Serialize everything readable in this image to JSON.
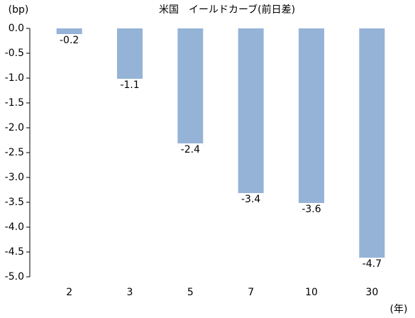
{
  "chart_data": {
    "type": "bar",
    "title": "米国　イールドカーブ(前日差)",
    "y_label": "(bp)",
    "x_label": "(年)",
    "categories": [
      "2",
      "3",
      "5",
      "7",
      "10",
      "30"
    ],
    "values": [
      -0.2,
      -1.1,
      -2.4,
      -3.4,
      -3.6,
      -4.7
    ],
    "color": "#95b3d7",
    "ylim": [
      0,
      -5
    ],
    "yticks": [
      {
        "value": 0,
        "label": "0.0"
      },
      -0.5,
      {
        "value": -1,
        "label": "-1.0"
      },
      -1.5,
      {
        "value": -2,
        "label": "-2.0"
      },
      -2.5,
      {
        "value": -3,
        "label": "-3.0"
      },
      -3.5,
      {
        "value": -4,
        "label": "-4.0"
      },
      -4.5,
      {
        "value": -5,
        "label": "-5.0"
      }
    ],
    "grid": false
  }
}
